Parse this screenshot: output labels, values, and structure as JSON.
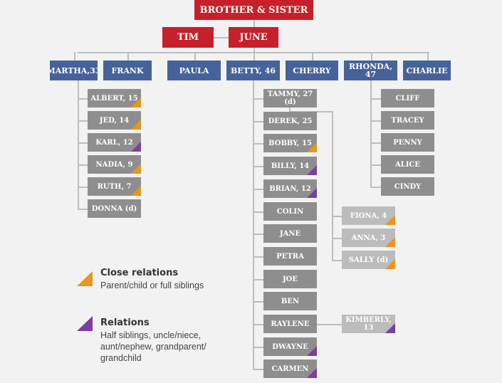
{
  "colors": {
    "root": "#c8202a",
    "generation1": "#46629a",
    "generation2": "#8e8e8e",
    "generation3": "#bcbcbc",
    "close_relations": "#e8961e",
    "relations": "#7b3fa0"
  },
  "root": {
    "label": "BROTHER & SISTER"
  },
  "parents": [
    {
      "label": "TIM"
    },
    {
      "label": "JUNE"
    }
  ],
  "children": [
    {
      "label": "MARTHA,33",
      "children": [
        {
          "label": "ALBERT, 15",
          "mark": "close"
        },
        {
          "label": "JED, 14",
          "mark": "close"
        },
        {
          "label": "KARL, 12",
          "mark": "relation"
        },
        {
          "label": "NADIA, 9",
          "mark": "close"
        },
        {
          "label": "RUTH, 7",
          "mark": "close"
        },
        {
          "label": "DONNA (d)",
          "mark": null
        }
      ]
    },
    {
      "label": "FRANK",
      "children": []
    },
    {
      "label": "PAULA",
      "children": []
    },
    {
      "label": "BETTY, 46",
      "children": [
        {
          "label": "TAMMY, 27 (d)",
          "mark": null,
          "children": [
            {
              "label": "FIONA, 4",
              "mark": "close"
            },
            {
              "label": "ANNA, 3",
              "mark": "close"
            },
            {
              "label": "SALLY (d)",
              "mark": "close"
            }
          ]
        },
        {
          "label": "DEREK, 25",
          "mark": null
        },
        {
          "label": "BOBBY, 15",
          "mark": "close"
        },
        {
          "label": "BILLY, 14",
          "mark": "relation"
        },
        {
          "label": "BRIAN, 12",
          "mark": "relation"
        },
        {
          "label": "COLIN",
          "mark": null
        },
        {
          "label": "JANE",
          "mark": null
        },
        {
          "label": "PETRA",
          "mark": null
        },
        {
          "label": "JOE",
          "mark": null
        },
        {
          "label": "BEN",
          "mark": null
        },
        {
          "label": "RAYLENE",
          "mark": null,
          "children": [
            {
              "label": "KIMBERLY, 13",
              "mark": "relation"
            }
          ]
        },
        {
          "label": "DWAYNE",
          "mark": "relation"
        },
        {
          "label": "CARMEN",
          "mark": "relation"
        }
      ]
    },
    {
      "label": "CHERRY",
      "children": []
    },
    {
      "label": "RHONDA, 47",
      "children": [
        {
          "label": "CLIFF",
          "mark": null
        },
        {
          "label": "TRACEY",
          "mark": null
        },
        {
          "label": "PENNY",
          "mark": null
        },
        {
          "label": "ALICE",
          "mark": null
        },
        {
          "label": "CINDY",
          "mark": null
        }
      ]
    },
    {
      "label": "CHARLIE",
      "children": []
    }
  ],
  "legend": {
    "close": {
      "title": "Close relations",
      "description": "Parent/child or full siblings",
      "icon": "orange-triangle"
    },
    "relation": {
      "title": "Relations",
      "description": "Half siblings, uncle/niece, aunt/nephew, grandparent/ grandchild",
      "icon": "purple-triangle"
    }
  }
}
